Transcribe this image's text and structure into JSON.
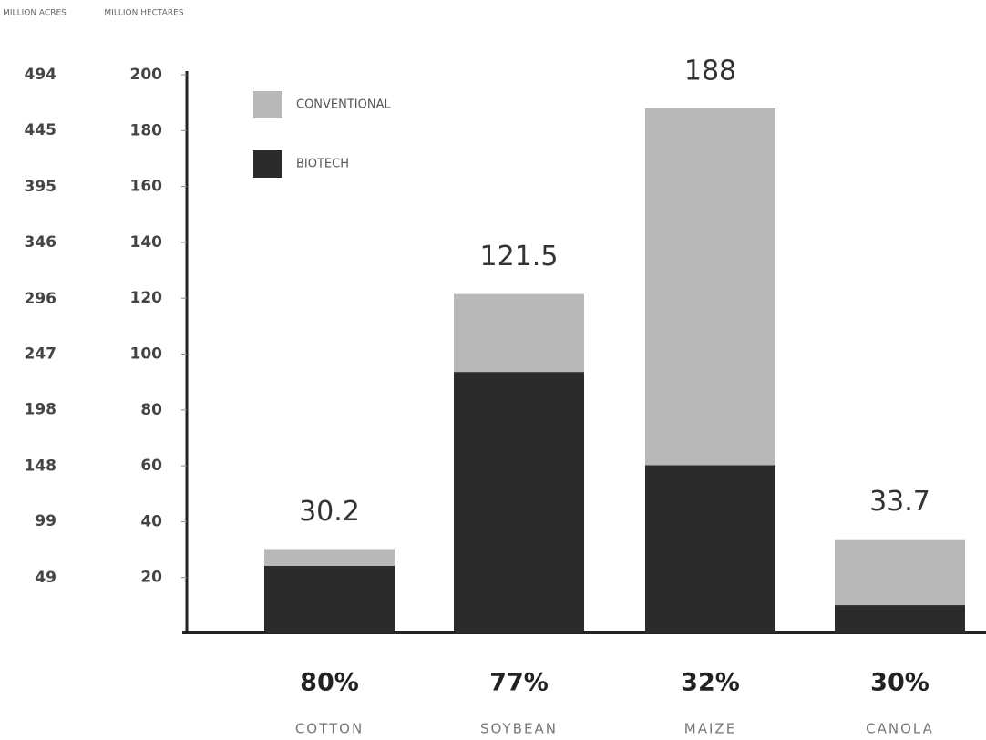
{
  "chart_data": {
    "type": "stacked_bar",
    "categories": [
      "COTTON",
      "SOYBEAN",
      "MAIZE",
      "CANOLA"
    ],
    "series": [
      {
        "name": "BIOTECH",
        "color": "#2b2b2b",
        "values": [
          24.2,
          93.6,
          60.2,
          10.1
        ]
      },
      {
        "name": "CONVENTIONAL",
        "color": "#b8b8b8",
        "values": [
          6.0,
          27.9,
          127.8,
          23.6
        ]
      }
    ],
    "totals": [
      30.2,
      121.5,
      188,
      33.7
    ],
    "shares": {
      "values": [
        80,
        77,
        32,
        30
      ],
      "value_labels": [
        "80%",
        "77%",
        "32%",
        "30%"
      ]
    },
    "ylabel": "MILLION HECTARES",
    "ylim": [
      0,
      200
    ],
    "yticks": [
      20,
      40,
      60,
      80,
      100,
      120,
      140,
      160,
      180,
      200
    ],
    "y2label": "MILLION ACRES",
    "y2lim": [
      0,
      494.2
    ],
    "y2ticks": [
      49,
      99,
      148,
      198,
      247,
      296,
      346,
      395,
      445,
      494
    ],
    "legend": "top-left",
    "grid": false
  }
}
